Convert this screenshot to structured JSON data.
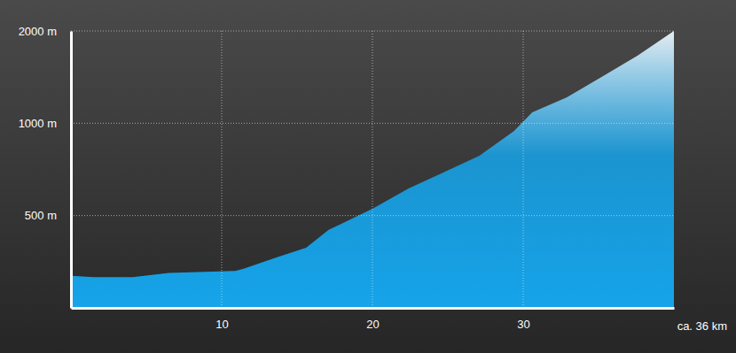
{
  "chart_data": {
    "type": "area",
    "x_label": "ca. 36 km",
    "x": [
      0,
      1.5,
      4.1,
      6.5,
      10.9,
      11.5,
      13.5,
      15.6,
      17.1,
      20,
      22.4,
      24.7,
      27.1,
      29.4,
      30.6,
      32.9,
      35.3,
      37.6,
      40
    ],
    "values": [
      318,
      315,
      315,
      325,
      330,
      336,
      363,
      393,
      449,
      526,
      613,
      691,
      784,
      944,
      1086,
      1216,
      1426,
      1662,
      2000
    ],
    "color": "#16a4ea",
    "xlim": [
      0,
      40
    ],
    "xticks": [
      10,
      20,
      30
    ],
    "ylim": [
      250,
      2000
    ],
    "yticks": [
      {
        "value": 500,
        "label": "500 m"
      },
      {
        "value": 1000,
        "label": "1000 m"
      },
      {
        "value": 2000,
        "label": "2000 m"
      }
    ],
    "log": "y",
    "grid": true
  }
}
